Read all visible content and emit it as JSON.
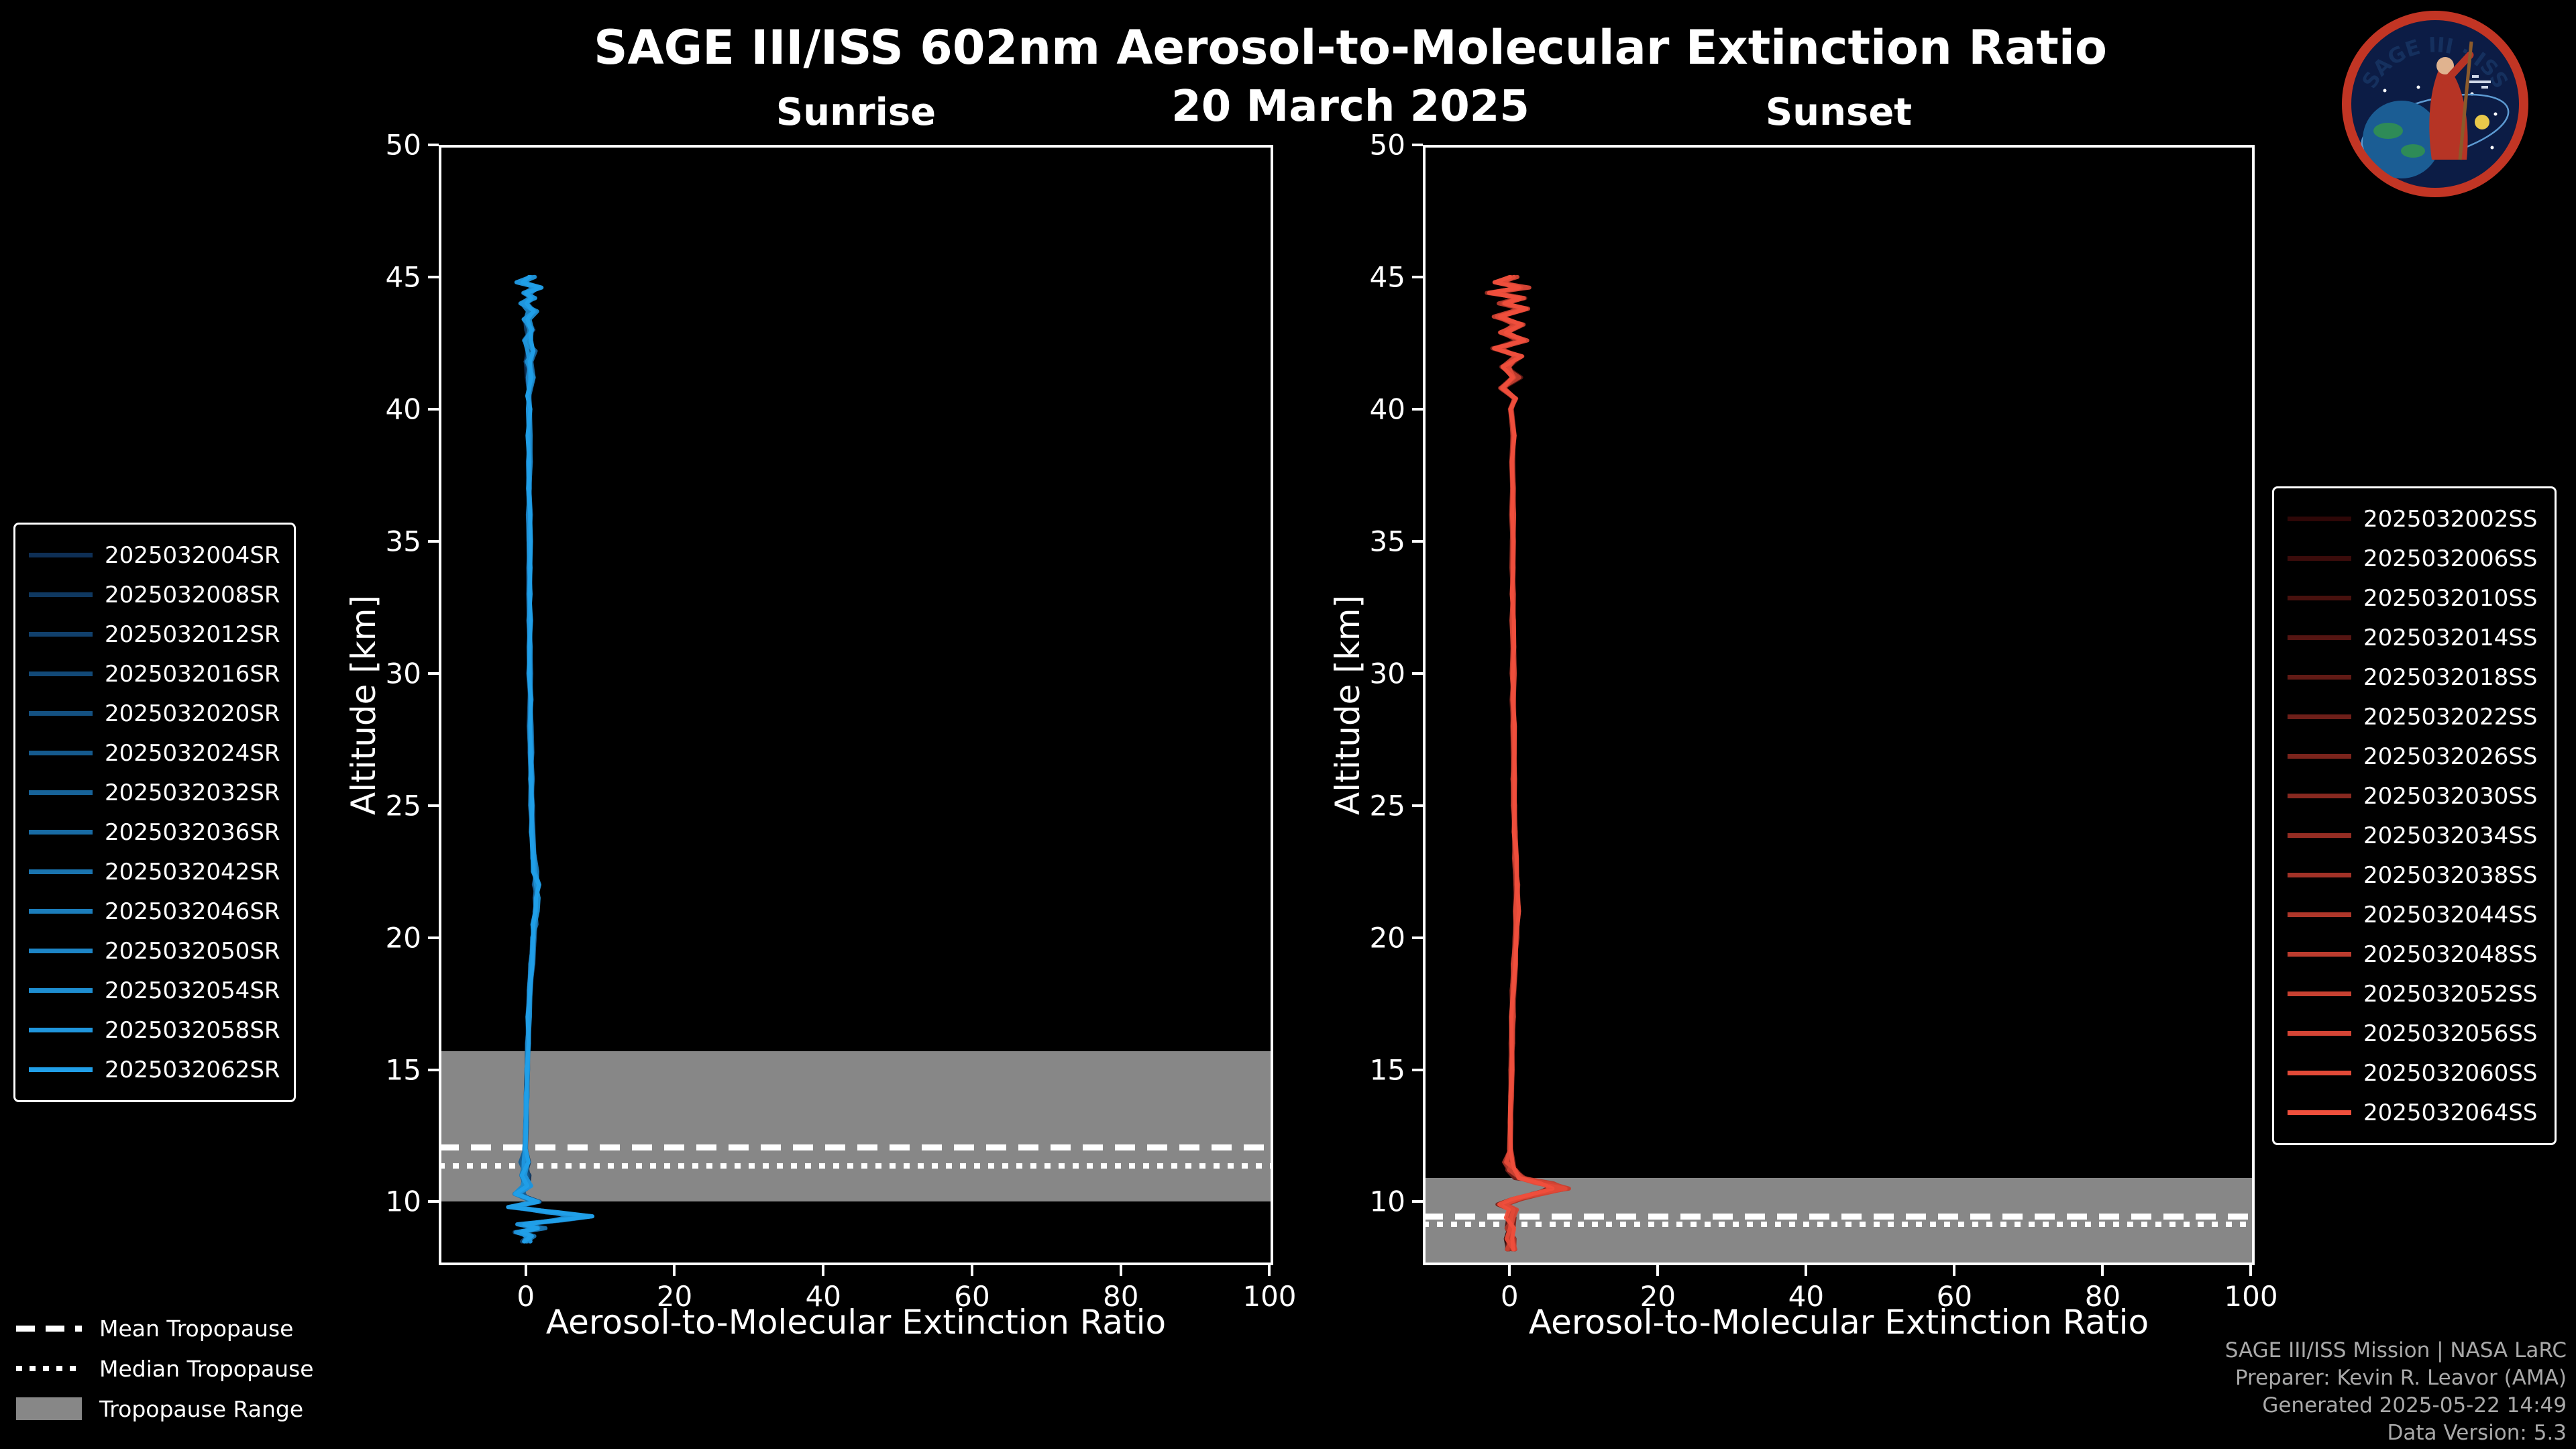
{
  "header": {
    "title": "SAGE III/ISS 602nm Aerosol-to-Molecular Extinction Ratio",
    "date": "20 March 2025"
  },
  "logo": {
    "title": "SAGE III · ISS"
  },
  "footer": {
    "lines": [
      "SAGE III/ISS Mission | NASA LaRC",
      "Preparer: Kevin R. Leavor (AMA)",
      "Generated 2025-05-22 14:49",
      "Data Version: 5.3"
    ]
  },
  "tropopause_legend": [
    {
      "style": "dashed",
      "label": "Mean Tropopause"
    },
    {
      "style": "dotted",
      "label": "Median Tropopause"
    },
    {
      "style": "bandbox",
      "label": "Tropopause Range"
    }
  ],
  "chart_data": {
    "type": "line",
    "title": "SAGE III/ISS 602nm Aerosol-to-Molecular Extinction Ratio",
    "subtitle": "20 March 2025",
    "xlabel": "Aerosol-to-Molecular Extinction Ratio",
    "ylabel": "Altitude [km]",
    "xlim": [
      -11.7,
      100.5
    ],
    "ylim": [
      7.6,
      50
    ],
    "xticks": [
      0,
      20,
      40,
      60,
      80,
      100
    ],
    "yticks": [
      10,
      15,
      20,
      25,
      30,
      35,
      40,
      45,
      50
    ],
    "grid": false,
    "colors": {
      "tropopause_band": "#878787",
      "tropopause_lines": "#ffffff"
    },
    "panels": [
      {
        "title": "Sunrise",
        "legend_position": "left",
        "color_start": "#0e2f55",
        "color_end": "#219fe8",
        "series": [
          "2025032004SR",
          "2025032008SR",
          "2025032012SR",
          "2025032016SR",
          "2025032020SR",
          "2025032024SR",
          "2025032032SR",
          "2025032036SR",
          "2025032042SR",
          "2025032046SR",
          "2025032050SR",
          "2025032054SR",
          "2025032058SR",
          "2025032062SR"
        ],
        "tropopause": {
          "mean": 12.05,
          "median": 11.35,
          "range": [
            10.0,
            15.7
          ]
        },
        "profile": [
          [
            45.0,
            0.8
          ],
          [
            44.8,
            -0.8
          ],
          [
            44.6,
            1.4
          ],
          [
            44.4,
            0.2
          ],
          [
            44.2,
            1.0
          ],
          [
            44.0,
            -0.3
          ],
          [
            43.7,
            0.9
          ],
          [
            43.4,
            0.1
          ],
          [
            43.0,
            0.7
          ],
          [
            42.6,
            0.2
          ],
          [
            42.2,
            0.8
          ],
          [
            41.8,
            0.3
          ],
          [
            41.2,
            0.6
          ],
          [
            40.5,
            0.4
          ],
          [
            40.0,
            0.5
          ],
          [
            39.0,
            0.45
          ],
          [
            38.0,
            0.5
          ],
          [
            37.0,
            0.45
          ],
          [
            36.0,
            0.5
          ],
          [
            35.0,
            0.5
          ],
          [
            34.0,
            0.45
          ],
          [
            33.0,
            0.5
          ],
          [
            32.0,
            0.5
          ],
          [
            31.0,
            0.5
          ],
          [
            30.0,
            0.55
          ],
          [
            29.0,
            0.6
          ],
          [
            28.0,
            0.6
          ],
          [
            27.0,
            0.65
          ],
          [
            26.0,
            0.7
          ],
          [
            25.0,
            0.8
          ],
          [
            24.0,
            0.95
          ],
          [
            23.0,
            1.1
          ],
          [
            22.5,
            1.3
          ],
          [
            22.0,
            1.45
          ],
          [
            21.5,
            1.5
          ],
          [
            21.0,
            1.35
          ],
          [
            20.5,
            1.15
          ],
          [
            20.0,
            1.0
          ],
          [
            19.0,
            0.75
          ],
          [
            18.0,
            0.55
          ],
          [
            17.0,
            0.4
          ],
          [
            16.0,
            0.3
          ],
          [
            15.0,
            0.2
          ],
          [
            14.0,
            0.1
          ],
          [
            13.0,
            0.05
          ],
          [
            12.0,
            -0.05
          ],
          [
            11.5,
            -0.15
          ],
          [
            11.0,
            -0.1
          ],
          [
            10.6,
            0.1
          ],
          [
            10.3,
            -0.9
          ],
          [
            10.0,
            1.2
          ],
          [
            9.8,
            -1.8
          ],
          [
            9.6,
            3.5
          ],
          [
            9.45,
            7.5
          ],
          [
            9.3,
            4.0
          ],
          [
            9.15,
            -0.5
          ],
          [
            9.0,
            2.0
          ],
          [
            8.85,
            -0.8
          ],
          [
            8.7,
            0.6
          ],
          [
            8.5,
            0.1
          ]
        ]
      },
      {
        "title": "Sunset",
        "legend_position": "right",
        "color_start": "#2e0707",
        "color_end": "#ef4f3c",
        "series": [
          "2025032002SS",
          "2025032006SS",
          "2025032010SS",
          "2025032014SS",
          "2025032018SS",
          "2025032022SS",
          "2025032026SS",
          "2025032030SS",
          "2025032034SS",
          "2025032038SS",
          "2025032044SS",
          "2025032048SS",
          "2025032052SS",
          "2025032056SS",
          "2025032060SS",
          "2025032064SS"
        ],
        "tropopause": {
          "mean": 9.45,
          "median": 9.15,
          "range": [
            7.6,
            10.9
          ]
        },
        "profile": [
          [
            45.0,
            0.5
          ],
          [
            44.8,
            -1.6
          ],
          [
            44.6,
            1.8
          ],
          [
            44.4,
            -2.2
          ],
          [
            44.2,
            1.5
          ],
          [
            44.0,
            -1.0
          ],
          [
            43.8,
            2.0
          ],
          [
            43.5,
            -1.5
          ],
          [
            43.2,
            1.2
          ],
          [
            42.9,
            -0.8
          ],
          [
            42.6,
            1.6
          ],
          [
            42.3,
            -1.8
          ],
          [
            42.0,
            1.4
          ],
          [
            41.6,
            -0.6
          ],
          [
            41.2,
            0.9
          ],
          [
            40.8,
            -1.0
          ],
          [
            40.4,
            0.7
          ],
          [
            40.0,
            0.2
          ],
          [
            39.0,
            0.5
          ],
          [
            38.0,
            0.35
          ],
          [
            37.0,
            0.45
          ],
          [
            36.0,
            0.4
          ],
          [
            35.0,
            0.45
          ],
          [
            34.0,
            0.4
          ],
          [
            33.0,
            0.45
          ],
          [
            32.0,
            0.45
          ],
          [
            31.0,
            0.5
          ],
          [
            30.0,
            0.5
          ],
          [
            29.0,
            0.5
          ],
          [
            28.0,
            0.55
          ],
          [
            27.0,
            0.55
          ],
          [
            26.0,
            0.6
          ],
          [
            25.0,
            0.65
          ],
          [
            24.0,
            0.7
          ],
          [
            23.0,
            0.8
          ],
          [
            22.0,
            0.9
          ],
          [
            21.0,
            1.0
          ],
          [
            20.0,
            0.85
          ],
          [
            19.0,
            0.65
          ],
          [
            18.0,
            0.5
          ],
          [
            17.0,
            0.4
          ],
          [
            16.0,
            0.3
          ],
          [
            15.0,
            0.25
          ],
          [
            14.0,
            0.2
          ],
          [
            13.0,
            0.1
          ],
          [
            12.0,
            0.05
          ],
          [
            11.5,
            -0.1
          ],
          [
            11.2,
            0.3
          ],
          [
            10.9,
            1.5
          ],
          [
            10.7,
            4.5
          ],
          [
            10.5,
            6.8
          ],
          [
            10.3,
            3.5
          ],
          [
            10.1,
            0.8
          ],
          [
            9.9,
            -0.9
          ],
          [
            9.7,
            0.4
          ],
          [
            9.4,
            0.15
          ],
          [
            9.0,
            0.2
          ],
          [
            8.6,
            0.1
          ],
          [
            8.2,
            0.15
          ]
        ]
      }
    ]
  }
}
